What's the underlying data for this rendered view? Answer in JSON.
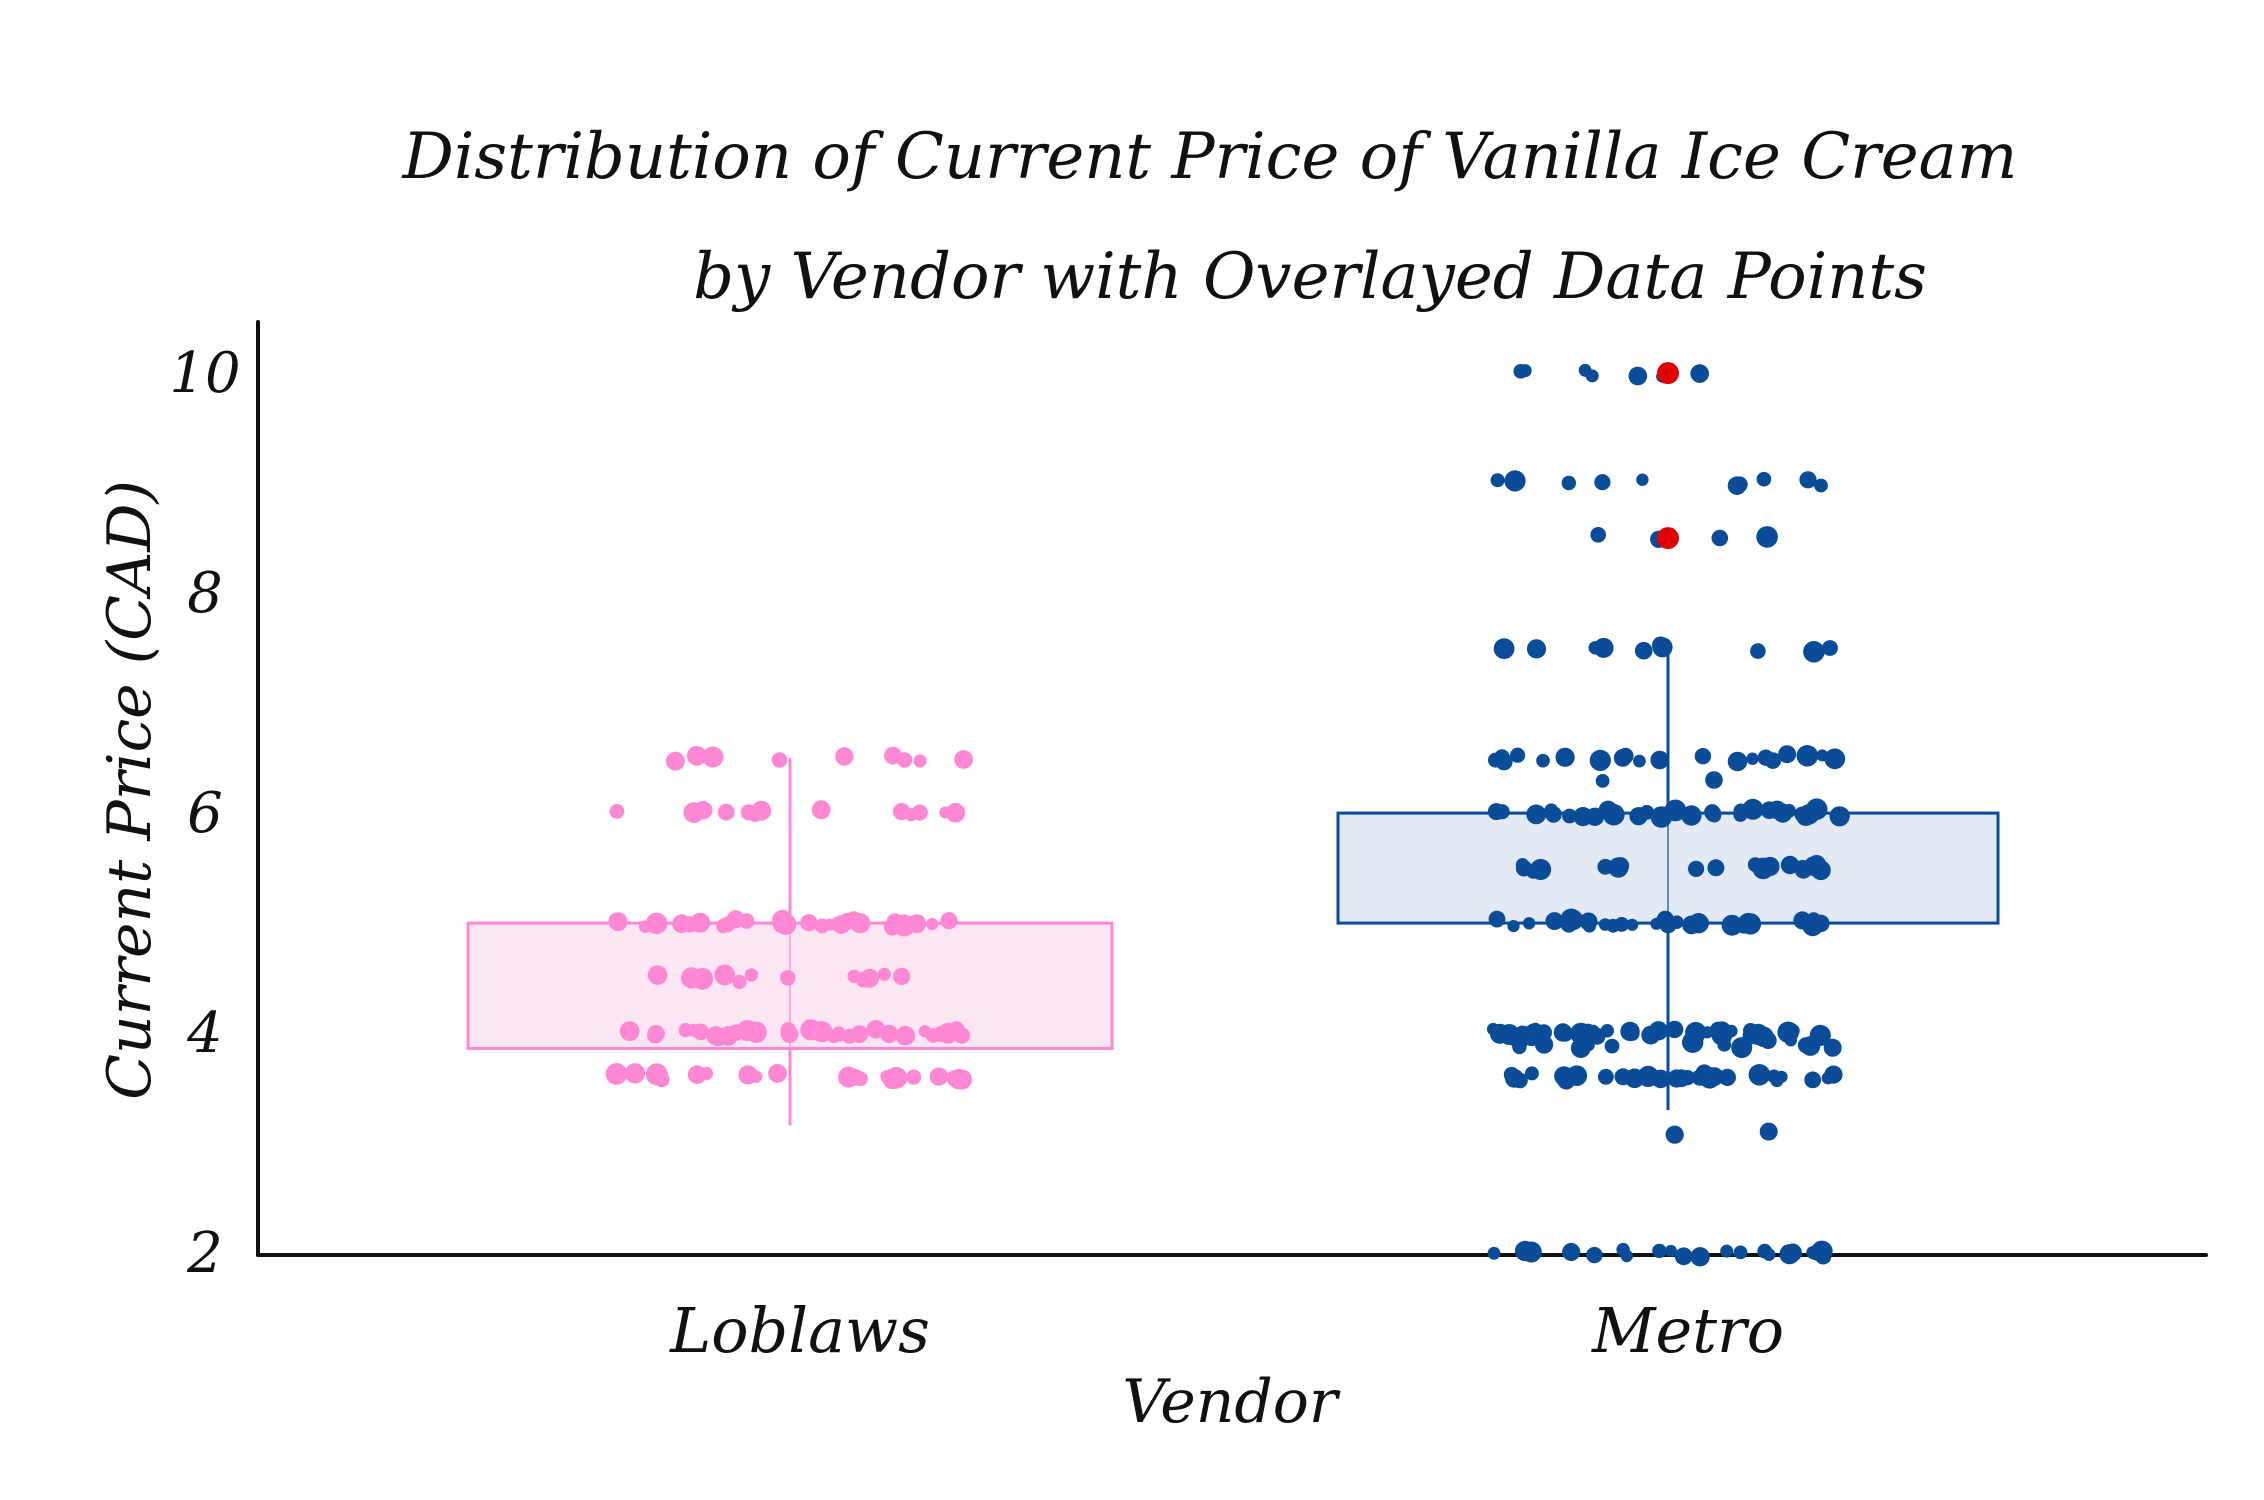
{
  "chart_data": {
    "type": "box",
    "title_line1": "Distribution of Current Price of Vanilla Ice Cream",
    "title_line2": "by Vendor with Overlayed Data Points",
    "xlabel": "Vendor",
    "ylabel": "Current Price (CAD)",
    "ylim": [
      2,
      10
    ],
    "yticks": [
      "2",
      "4",
      "6",
      "8",
      "10"
    ],
    "ytick_values": [
      2,
      4,
      6,
      8,
      10
    ],
    "grid": false,
    "categories": [
      "Loblaws",
      "Metro"
    ],
    "series": [
      {
        "category": "Loblaws",
        "color": "#ff88d4",
        "box_fill": "#fde6f3",
        "whisker_low": 3.15,
        "q1": 3.85,
        "median": 4.4,
        "q3": 4.99,
        "whisker_high": 6.49,
        "outliers": [],
        "points": [
          {
            "y": 6.49,
            "n": 9
          },
          {
            "y": 5.99,
            "n": 14
          },
          {
            "y": 4.99,
            "n": 30
          },
          {
            "y": 4.49,
            "n": 13
          },
          {
            "y": 3.99,
            "n": 30
          },
          {
            "y": 3.59,
            "n": 22
          }
        ]
      },
      {
        "category": "Metro",
        "color": "#0a4c97",
        "box_fill": "#e3eaf4",
        "whisker_low": 3.29,
        "q1": 4.99,
        "median": 5.49,
        "q3": 5.99,
        "whisker_high": 7.49,
        "outliers": [
          9.99,
          8.49
        ],
        "outlier_color": "#e00000",
        "points": [
          {
            "y": 9.99,
            "n": 7
          },
          {
            "y": 8.99,
            "n": 10
          },
          {
            "y": 8.49,
            "n": 4
          },
          {
            "y": 7.49,
            "n": 10
          },
          {
            "y": 6.49,
            "n": 24
          },
          {
            "y": 6.29,
            "n": 2
          },
          {
            "y": 5.99,
            "n": 32
          },
          {
            "y": 5.49,
            "n": 18
          },
          {
            "y": 4.99,
            "n": 32
          },
          {
            "y": 3.99,
            "n": 36
          },
          {
            "y": 3.89,
            "n": 14
          },
          {
            "y": 3.59,
            "n": 28
          },
          {
            "y": 3.09,
            "n": 2
          },
          {
            "y": 1.99,
            "n": 24
          }
        ]
      }
    ]
  }
}
